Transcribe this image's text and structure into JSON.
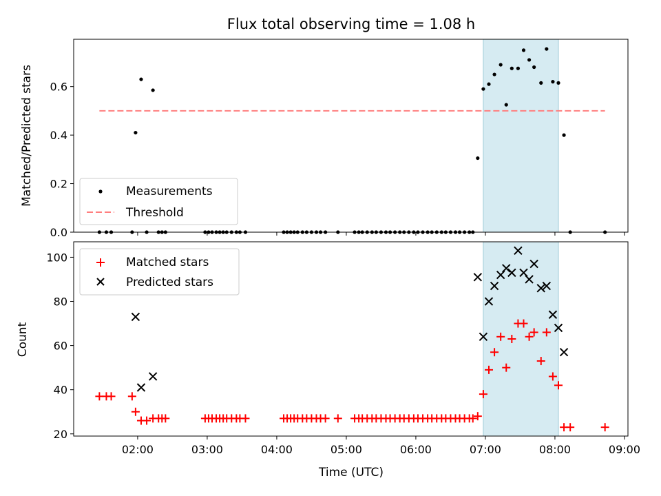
{
  "figure": {
    "title": "Flux total observing time = 1.08 h",
    "xlabel": "Time (UTC)"
  },
  "colors": {
    "measurement": "#000000",
    "threshold": "#ff7f7f",
    "matched": "#ff0000",
    "predicted": "#000000",
    "highlight": "#add8e6"
  },
  "chart_data": [
    {
      "type": "scatter",
      "ylabel": "Matched/Predicted stars",
      "xlim": [
        1.08,
        9.05
      ],
      "ylim": [
        0,
        0.795
      ],
      "yticks": [
        0.0,
        0.2,
        0.4,
        0.6
      ],
      "yticklabels": [
        "0.0",
        "0.2",
        "0.4",
        "0.6"
      ],
      "highlight_span": [
        6.97,
        8.05
      ],
      "legend": {
        "position": "lower-left",
        "entries": [
          "Measurements",
          "Threshold"
        ]
      },
      "threshold": {
        "name": "Threshold",
        "x": [
          1.45,
          8.72
        ],
        "y": 0.5
      },
      "series": [
        {
          "name": "Measurements",
          "x": [
            1.45,
            1.55,
            1.62,
            1.92,
            1.97,
            2.05,
            2.13,
            2.22,
            2.3,
            2.35,
            2.4,
            2.97,
            3.02,
            3.07,
            3.13,
            3.18,
            3.23,
            3.28,
            3.35,
            3.42,
            3.47,
            3.55,
            4.1,
            4.15,
            4.2,
            4.25,
            4.3,
            4.37,
            4.43,
            4.5,
            4.57,
            4.63,
            4.7,
            4.88,
            5.12,
            5.18,
            5.23,
            5.3,
            5.37,
            5.43,
            5.5,
            5.57,
            5.63,
            5.7,
            5.77,
            5.83,
            5.9,
            5.97,
            6.03,
            6.1,
            6.17,
            6.23,
            6.3,
            6.37,
            6.43,
            6.5,
            6.57,
            6.63,
            6.7,
            6.77,
            6.82,
            6.89,
            6.97,
            7.05,
            7.13,
            7.22,
            7.3,
            7.38,
            7.47,
            7.55,
            7.63,
            7.7,
            7.8,
            7.88,
            7.97,
            8.05,
            8.13,
            8.22,
            8.72
          ],
          "y": [
            0,
            0,
            0,
            0,
            0.41,
            0.63,
            0,
            0.585,
            0,
            0,
            0,
            0,
            0,
            0,
            0,
            0,
            0,
            0,
            0,
            0,
            0,
            0,
            0,
            0,
            0,
            0,
            0,
            0,
            0,
            0,
            0,
            0,
            0,
            0,
            0,
            0,
            0,
            0,
            0,
            0,
            0,
            0,
            0,
            0,
            0,
            0,
            0,
            0,
            0,
            0,
            0,
            0,
            0,
            0,
            0,
            0,
            0,
            0,
            0,
            0,
            0,
            0.305,
            0.59,
            0.61,
            0.65,
            0.69,
            0.525,
            0.675,
            0.675,
            0.75,
            0.71,
            0.68,
            0.615,
            0.755,
            0.62,
            0.615,
            0.4,
            0,
            0
          ]
        }
      ]
    },
    {
      "type": "scatter",
      "ylabel": "Count",
      "xlim": [
        1.08,
        9.05
      ],
      "ylim": [
        19,
        107
      ],
      "yticks": [
        20,
        40,
        60,
        80,
        100
      ],
      "yticklabels": [
        "20",
        "40",
        "60",
        "80",
        "100"
      ],
      "xticks": [
        2,
        3,
        4,
        5,
        6,
        7,
        8,
        9
      ],
      "xticklabels": [
        "02:00",
        "03:00",
        "04:00",
        "05:00",
        "06:00",
        "07:00",
        "08:00",
        "09:00"
      ],
      "highlight_span": [
        6.97,
        8.05
      ],
      "legend": {
        "position": "upper-left",
        "entries": [
          "Matched stars",
          "Predicted stars"
        ]
      },
      "series": [
        {
          "name": "Matched stars",
          "x": [
            1.45,
            1.55,
            1.62,
            1.92,
            1.97,
            2.05,
            2.13,
            2.22,
            2.3,
            2.35,
            2.4,
            2.97,
            3.02,
            3.07,
            3.13,
            3.18,
            3.23,
            3.28,
            3.35,
            3.42,
            3.47,
            3.55,
            4.1,
            4.15,
            4.2,
            4.25,
            4.3,
            4.37,
            4.43,
            4.5,
            4.57,
            4.63,
            4.7,
            4.88,
            5.12,
            5.18,
            5.23,
            5.3,
            5.37,
            5.43,
            5.5,
            5.57,
            5.63,
            5.7,
            5.77,
            5.83,
            5.9,
            5.97,
            6.03,
            6.1,
            6.17,
            6.23,
            6.3,
            6.37,
            6.43,
            6.5,
            6.57,
            6.63,
            6.7,
            6.77,
            6.82,
            6.89,
            6.97,
            7.05,
            7.13,
            7.22,
            7.3,
            7.38,
            7.47,
            7.55,
            7.63,
            7.7,
            7.8,
            7.88,
            7.97,
            8.05,
            8.13,
            8.22,
            8.72
          ],
          "y": [
            37,
            37,
            37,
            37,
            30,
            26,
            26,
            27,
            27,
            27,
            27,
            27,
            27,
            27,
            27,
            27,
            27,
            27,
            27,
            27,
            27,
            27,
            27,
            27,
            27,
            27,
            27,
            27,
            27,
            27,
            27,
            27,
            27,
            27,
            27,
            27,
            27,
            27,
            27,
            27,
            27,
            27,
            27,
            27,
            27,
            27,
            27,
            27,
            27,
            27,
            27,
            27,
            27,
            27,
            27,
            27,
            27,
            27,
            27,
            27,
            27,
            28,
            38,
            49,
            57,
            64,
            50,
            63,
            70,
            70,
            64,
            66,
            53,
            66,
            46,
            42,
            23,
            23,
            23
          ]
        },
        {
          "name": "Predicted stars",
          "x": [
            1.97,
            2.05,
            2.22,
            6.89,
            6.97,
            7.05,
            7.13,
            7.22,
            7.3,
            7.38,
            7.47,
            7.55,
            7.63,
            7.7,
            7.8,
            7.88,
            7.97,
            8.05,
            8.13
          ],
          "y": [
            73,
            41,
            46,
            91,
            64,
            80,
            87,
            92,
            95,
            93,
            103,
            93,
            90,
            97,
            86,
            87,
            74,
            68,
            57
          ]
        }
      ]
    }
  ]
}
